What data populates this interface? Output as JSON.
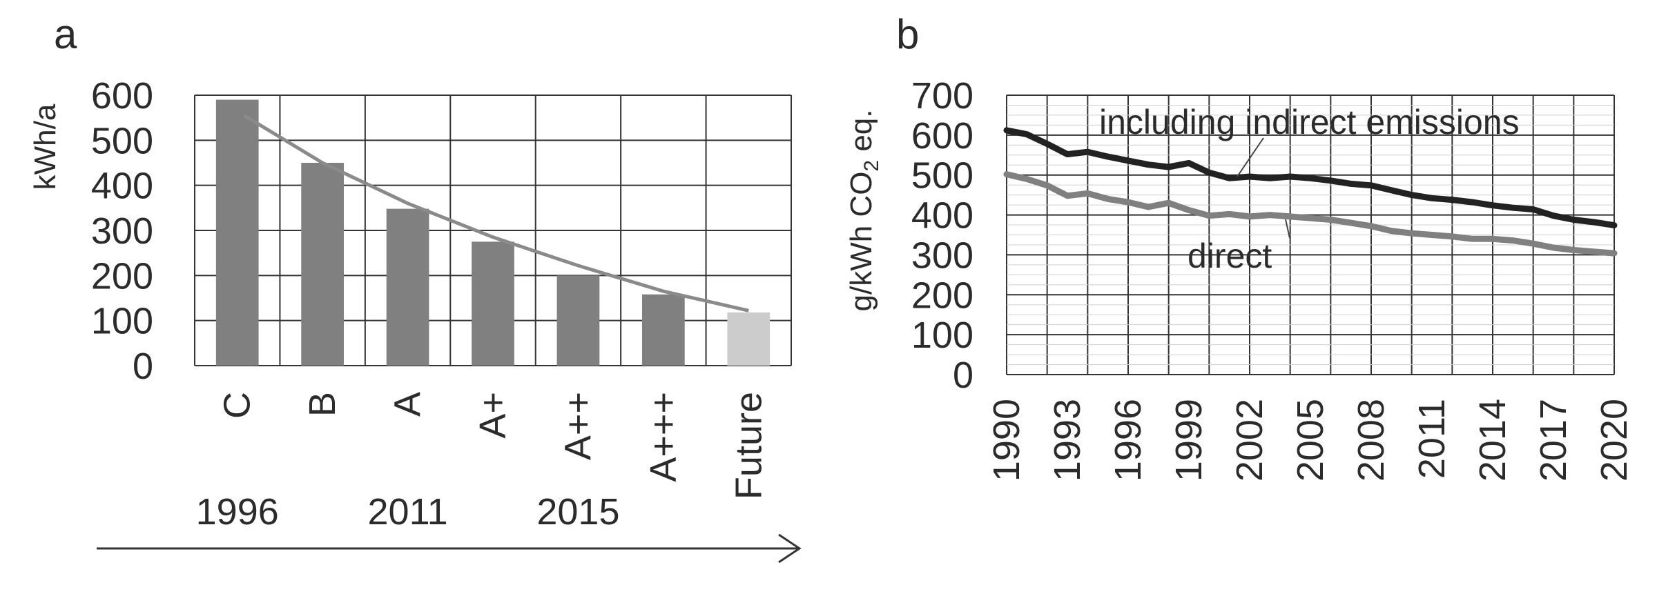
{
  "chart_data": [
    {
      "panel_label": "a",
      "type": "bar",
      "categories": [
        "C",
        "B",
        "A",
        "A+",
        "A++",
        "A+++",
        "Future"
      ],
      "values": [
        590,
        450,
        348,
        275,
        200,
        158,
        118
      ],
      "ylabel": "kWh/a",
      "ylim": [
        0,
        600
      ],
      "yticks": [
        "0",
        "100",
        "200",
        "300",
        "400",
        "500",
        "600"
      ],
      "grid": true,
      "bar_colors": [
        "#808080",
        "#808080",
        "#808080",
        "#808080",
        "#808080",
        "#808080",
        "#cccccc"
      ],
      "trend_line": {
        "x": [
          "C",
          "B",
          "A",
          "A+",
          "A++",
          "A+++",
          "Future"
        ],
        "values": [
          555,
          450,
          360,
          285,
          222,
          165,
          122
        ]
      },
      "timeline": {
        "labels": [
          {
            "text": "1996",
            "at_category": "C"
          },
          {
            "text": "2011",
            "at_category": "A"
          },
          {
            "text": "2015",
            "at_category": "A++"
          }
        ]
      }
    },
    {
      "panel_label": "b",
      "type": "line",
      "ylabel_main": "g/kWh CO",
      "ylabel_sub": "2",
      "ylabel_tail": " eq.",
      "ylim": [
        0,
        700
      ],
      "yticks": [
        "0",
        "100",
        "200",
        "300",
        "400",
        "500",
        "600",
        "700"
      ],
      "xlim": [
        1990,
        2020
      ],
      "xticks": [
        "1990",
        "1993",
        "1996",
        "1999",
        "2002",
        "2005",
        "2008",
        "2011",
        "2014",
        "2017",
        "2020"
      ],
      "grid": true,
      "series": [
        {
          "name": "including indirect emissions",
          "color": "#222222",
          "x": [
            1990,
            1991,
            1992,
            1993,
            1994,
            1995,
            1996,
            1997,
            1998,
            1999,
            2000,
            2001,
            2002,
            2003,
            2004,
            2005,
            2006,
            2007,
            2008,
            2009,
            2010,
            2011,
            2012,
            2013,
            2014,
            2015,
            2016,
            2017,
            2018,
            2019,
            2020
          ],
          "y": [
            612,
            602,
            578,
            552,
            558,
            546,
            536,
            526,
            520,
            530,
            506,
            492,
            496,
            492,
            496,
            492,
            486,
            478,
            474,
            462,
            450,
            442,
            438,
            432,
            424,
            418,
            414,
            398,
            388,
            382,
            374
          ]
        },
        {
          "name": "direct",
          "color": "#808080",
          "x": [
            1990,
            1991,
            1992,
            1993,
            1994,
            1995,
            1996,
            1997,
            1998,
            1999,
            2000,
            2001,
            2002,
            2003,
            2004,
            2005,
            2006,
            2007,
            2008,
            2009,
            2010,
            2011,
            2012,
            2013,
            2014,
            2015,
            2016,
            2017,
            2018,
            2019,
            2020
          ],
          "y": [
            502,
            490,
            474,
            448,
            454,
            440,
            432,
            420,
            430,
            412,
            398,
            402,
            396,
            400,
            396,
            392,
            388,
            380,
            372,
            360,
            354,
            350,
            346,
            340,
            340,
            336,
            328,
            318,
            312,
            308,
            304
          ]
        }
      ]
    }
  ]
}
